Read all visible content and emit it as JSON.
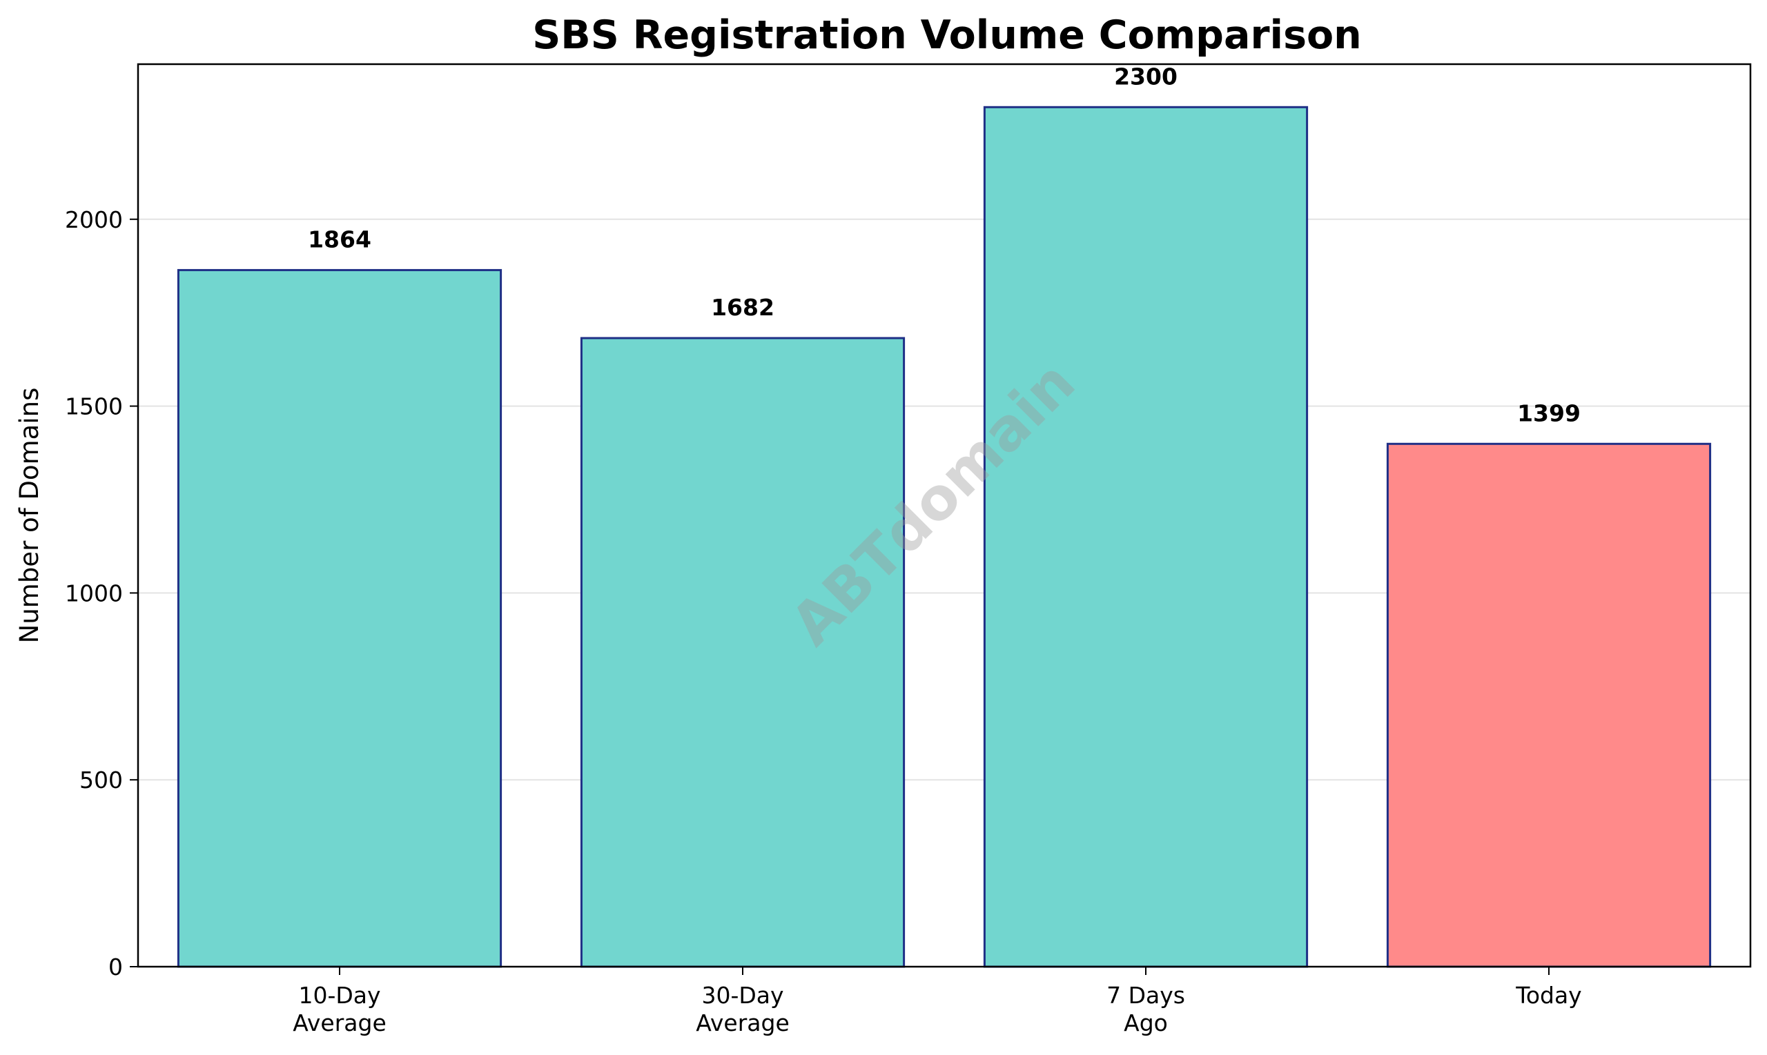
{
  "chart_data": {
    "type": "bar",
    "title": "SBS Registration Volume Comparison",
    "xlabel": "",
    "ylabel": "Number of Domains",
    "categories": [
      [
        "10-Day",
        "Average"
      ],
      [
        "30-Day",
        "Average"
      ],
      [
        "7 Days",
        "Ago"
      ],
      [
        "Today"
      ]
    ],
    "values": [
      1864,
      1682,
      2300,
      1399
    ],
    "data_labels": [
      "1864",
      "1682",
      "2300",
      "1399"
    ],
    "bar_colors": [
      "#72d6cf",
      "#72d6cf",
      "#72d6cf",
      "#ff8a8a"
    ],
    "edge_color": "#1f2f86",
    "ylim": [
      0,
      2415
    ],
    "yticks": [
      0,
      500,
      1000,
      1500,
      2000
    ],
    "grid": "horizontal",
    "watermark": "ABTdomain"
  }
}
